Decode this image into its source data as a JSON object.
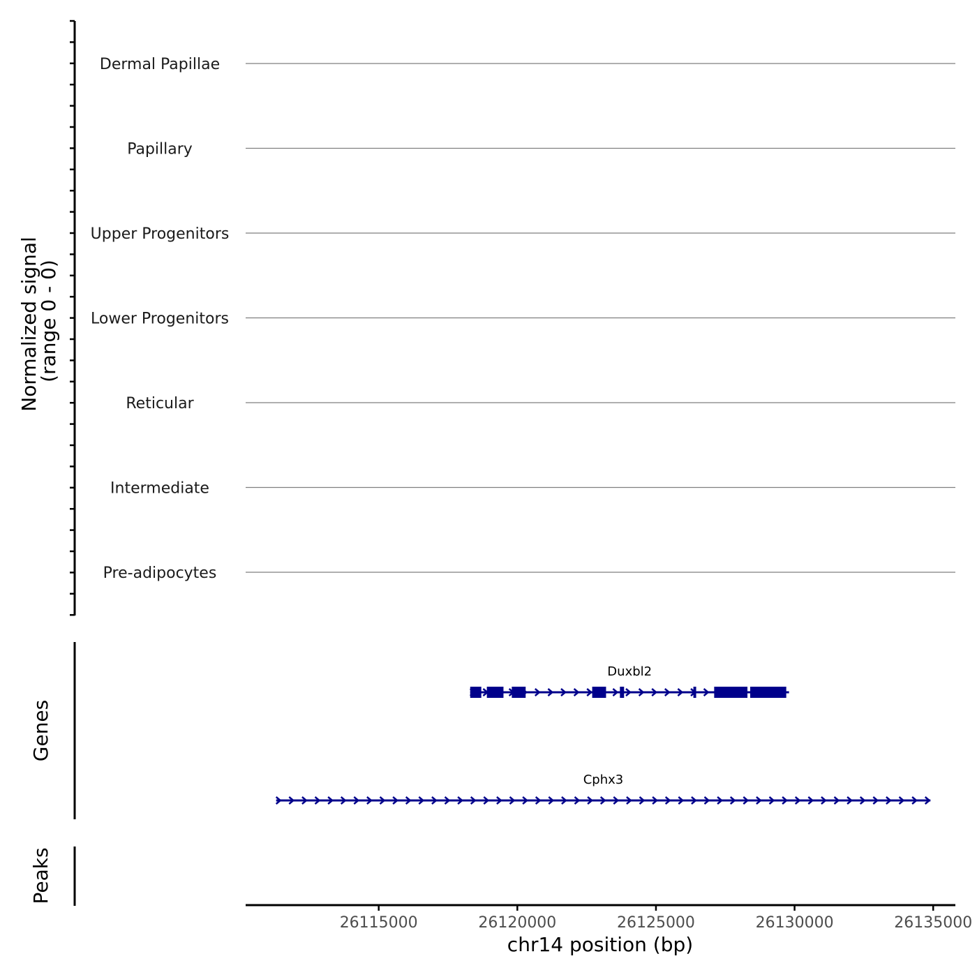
{
  "chart_data": [
    {
      "type": "coverage",
      "ylabel_line1": "Normalized signal",
      "ylabel_line2": "(range 0 - 0)",
      "tracks": [
        {
          "name": "Dermal Papillae",
          "values": [
            0
          ]
        },
        {
          "name": "Papillary",
          "values": [
            0
          ]
        },
        {
          "name": "Upper Progenitors",
          "values": [
            0
          ]
        },
        {
          "name": "Lower Progenitors",
          "values": [
            0
          ]
        },
        {
          "name": "Reticular",
          "values": [
            0
          ]
        },
        {
          "name": "Intermediate",
          "values": [
            0
          ]
        },
        {
          "name": "Pre-adipocytes",
          "values": [
            0
          ]
        }
      ]
    },
    {
      "type": "gene_annotation",
      "ylabel": "Genes",
      "color": "#00008b",
      "genes": [
        {
          "name": "Duxbl2",
          "strand": "+",
          "start": 26118300,
          "end": 26129800,
          "exons": [
            [
              26118300,
              26118700
            ],
            [
              26118900,
              26119500
            ],
            [
              26119800,
              26120300
            ],
            [
              26122700,
              26123200
            ],
            [
              26123700,
              26123850
            ],
            [
              26126350,
              26126450
            ],
            [
              26127100,
              26128300
            ],
            [
              26128400,
              26129700
            ]
          ]
        },
        {
          "name": "Cphx3",
          "strand": "+",
          "start": 26111300,
          "end": 26134900,
          "exons": []
        }
      ]
    },
    {
      "type": "peaks",
      "ylabel": "Peaks",
      "peaks": []
    }
  ],
  "x_axis": {
    "label": "chr14 position (bp)",
    "range": [
      26110200,
      26135800
    ],
    "ticks": [
      26115000,
      26120000,
      26125000,
      26130000,
      26135000
    ],
    "tick_labels": [
      "26115000",
      "26120000",
      "26125000",
      "26130000",
      "26135000"
    ]
  },
  "colors": {
    "gene": "#00008b",
    "baseline": "#7f7f7f",
    "axis": "#000000"
  }
}
